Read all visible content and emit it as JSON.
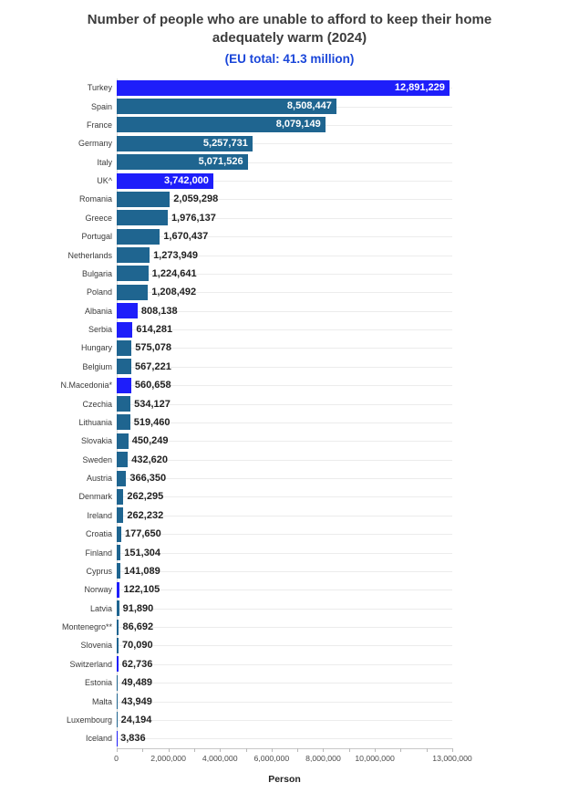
{
  "header": {
    "title": "Number of people who are unable to afford to keep their home adequately warm (2024)",
    "subtitle": "(EU total: 41.3 million)"
  },
  "colors": {
    "title_text": "#3d3d3d",
    "subtitle_text": "#1a46d9",
    "eu_bar_teal": "#1f6590",
    "noneu_bar_blue": "#1e1efa",
    "value_label_dark": "#1f1f1f",
    "value_label_light": "#ffffff",
    "gridline": "#ececec"
  },
  "chart_data": {
    "type": "bar",
    "orientation": "horizontal",
    "title": "Number of people who are unable to afford to keep their home adequately warm (2024)",
    "subtitle": "(EU total: 41.3 million)",
    "xlabel": "Person",
    "ylabel": "",
    "xlim": [
      0,
      13000000
    ],
    "grid": "per-category horizontal gridlines",
    "legend": "none",
    "x_ticks": [
      {
        "value": 0,
        "label": "0"
      },
      {
        "value": 2000000,
        "label": "2,000,000"
      },
      {
        "value": 4000000,
        "label": "4,000,000"
      },
      {
        "value": 6000000,
        "label": "6,000,000"
      },
      {
        "value": 8000000,
        "label": "8,000,000"
      },
      {
        "value": 10000000,
        "label": "10,000,000"
      },
      {
        "value": 13000000,
        "label": "13,000,000"
      }
    ],
    "minor_tick_interval": 1000000,
    "rows": [
      {
        "country": "Turkey",
        "value": 12891229,
        "label": "12,891,229",
        "color": "blue"
      },
      {
        "country": "Spain",
        "value": 8508447,
        "label": "8,508,447",
        "color": "teal"
      },
      {
        "country": "France",
        "value": 8079149,
        "label": "8,079,149",
        "color": "teal"
      },
      {
        "country": "Germany",
        "value": 5257731,
        "label": "5,257,731",
        "color": "teal"
      },
      {
        "country": "Italy",
        "value": 5071526,
        "label": "5,071,526",
        "color": "teal"
      },
      {
        "country": "UK^",
        "value": 3742000,
        "label": "3,742,000",
        "color": "blue"
      },
      {
        "country": "Romania",
        "value": 2059298,
        "label": "2,059,298",
        "color": "teal"
      },
      {
        "country": "Greece",
        "value": 1976137,
        "label": "1,976,137",
        "color": "teal"
      },
      {
        "country": "Portugal",
        "value": 1670437,
        "label": "1,670,437",
        "color": "teal"
      },
      {
        "country": "Netherlands",
        "value": 1273949,
        "label": "1,273,949",
        "color": "teal"
      },
      {
        "country": "Bulgaria",
        "value": 1224641,
        "label": "1,224,641",
        "color": "teal"
      },
      {
        "country": "Poland",
        "value": 1208492,
        "label": "1,208,492",
        "color": "teal"
      },
      {
        "country": "Albania",
        "value": 808138,
        "label": "808,138",
        "color": "blue"
      },
      {
        "country": "Serbia",
        "value": 614281,
        "label": "614,281",
        "color": "blue"
      },
      {
        "country": "Hungary",
        "value": 575078,
        "label": "575,078",
        "color": "teal"
      },
      {
        "country": "Belgium",
        "value": 567221,
        "label": "567,221",
        "color": "teal"
      },
      {
        "country": "N.Macedonia*",
        "value": 560658,
        "label": "560,658",
        "color": "blue"
      },
      {
        "country": "Czechia",
        "value": 534127,
        "label": "534,127",
        "color": "teal"
      },
      {
        "country": "Lithuania",
        "value": 519460,
        "label": "519,460",
        "color": "teal"
      },
      {
        "country": "Slovakia",
        "value": 450249,
        "label": "450,249",
        "color": "teal"
      },
      {
        "country": "Sweden",
        "value": 432620,
        "label": "432,620",
        "color": "teal"
      },
      {
        "country": "Austria",
        "value": 366350,
        "label": "366,350",
        "color": "teal"
      },
      {
        "country": "Denmark",
        "value": 262295,
        "label": "262,295",
        "color": "teal"
      },
      {
        "country": "Ireland",
        "value": 262232,
        "label": "262,232",
        "color": "teal"
      },
      {
        "country": "Croatia",
        "value": 177650,
        "label": "177,650",
        "color": "teal"
      },
      {
        "country": "Finland",
        "value": 151304,
        "label": "151,304",
        "color": "teal"
      },
      {
        "country": "Cyprus",
        "value": 141089,
        "label": "141,089",
        "color": "teal"
      },
      {
        "country": "Norway",
        "value": 122105,
        "label": "122,105",
        "color": "blue"
      },
      {
        "country": "Latvia",
        "value": 91890,
        "label": "91,890",
        "color": "teal"
      },
      {
        "country": "Montenegro**",
        "value": 86692,
        "label": "86,692",
        "color": "teal"
      },
      {
        "country": "Slovenia",
        "value": 70090,
        "label": "70,090",
        "color": "teal"
      },
      {
        "country": "Switzerland",
        "value": 62736,
        "label": "62,736",
        "color": "blue"
      },
      {
        "country": "Estonia",
        "value": 49489,
        "label": "49,489",
        "color": "teal"
      },
      {
        "country": "Malta",
        "value": 43949,
        "label": "43,949",
        "color": "teal"
      },
      {
        "country": "Luxembourg",
        "value": 24194,
        "label": "24,194",
        "color": "teal"
      },
      {
        "country": "Iceland",
        "value": 3836,
        "label": "3,836",
        "color": "blue"
      }
    ]
  }
}
